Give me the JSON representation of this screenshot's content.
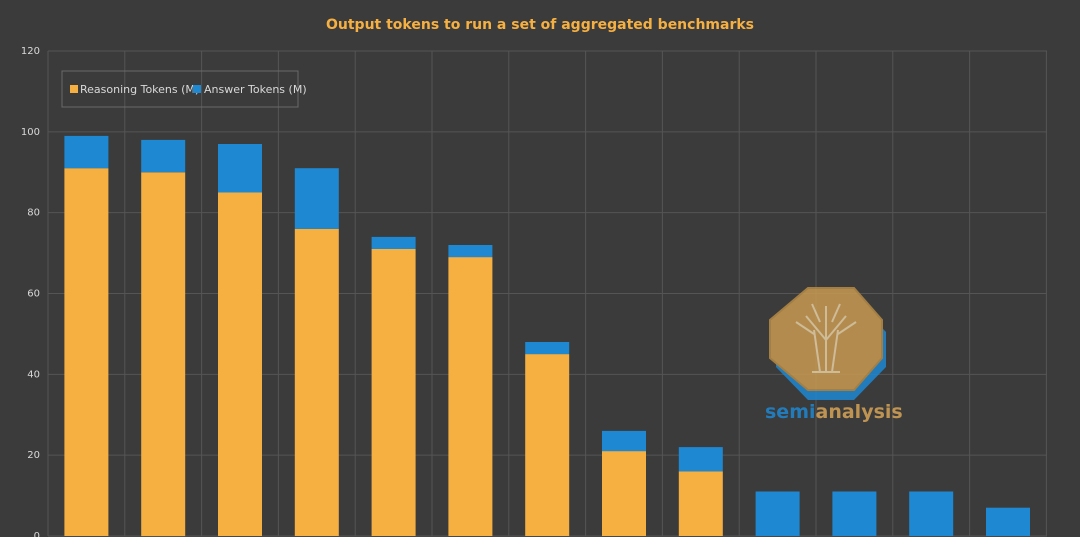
{
  "chart_data": {
    "type": "bar",
    "stacked": true,
    "title": "Output tokens to run a set of aggregated benchmarks",
    "xlabel": "",
    "ylabel": "",
    "ylim": [
      0,
      120
    ],
    "yticks": [
      0,
      20,
      40,
      60,
      80,
      100,
      120
    ],
    "grid": true,
    "legend_position": "top-left",
    "categories": [
      "",
      "",
      "",
      "",
      "",
      "",
      "",
      "",
      "",
      "",
      "",
      "",
      ""
    ],
    "series": [
      {
        "name": "Reasoning Tokens (M)",
        "color": "#f6b042",
        "values": [
          91,
          90,
          85,
          76,
          71,
          69,
          45,
          21,
          16,
          0,
          0,
          0,
          0
        ]
      },
      {
        "name": "Answer Tokens (M)",
        "color": "#1e88d2",
        "values": [
          8,
          8,
          12,
          15,
          3,
          3,
          3,
          5,
          6,
          11,
          11,
          11,
          7
        ]
      }
    ],
    "watermark": {
      "text_part1": "semi",
      "text_part2": "analysis",
      "color_part1": "#1e88d2",
      "color_part2": "#d7a457"
    }
  },
  "colors": {
    "background": "#3b3b3b",
    "gridline": "#555555",
    "title": "#f6b042",
    "tick_label": "#d9d9d9"
  }
}
